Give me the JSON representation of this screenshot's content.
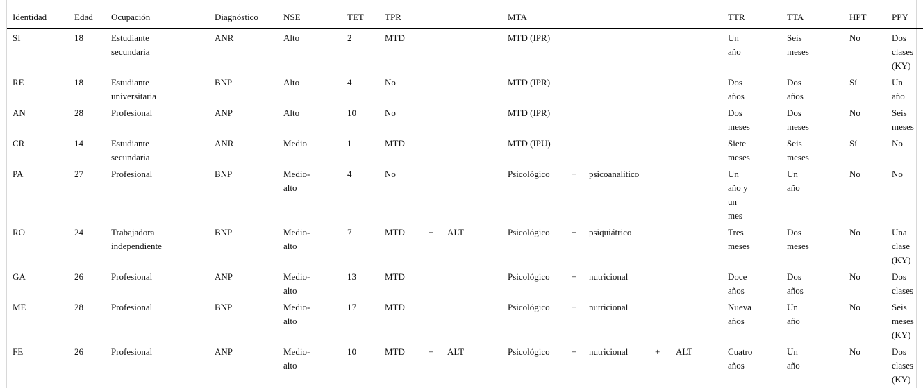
{
  "table": {
    "columns": [
      {
        "key": "identidad",
        "label": "Identidad"
      },
      {
        "key": "edad",
        "label": "Edad"
      },
      {
        "key": "ocupacion",
        "label": "Ocupación"
      },
      {
        "key": "diagnostico",
        "label": "Diagnóstico"
      },
      {
        "key": "nse",
        "label": "NSE"
      },
      {
        "key": "tet",
        "label": "TET"
      },
      {
        "key": "tpr",
        "label": "TPR"
      },
      {
        "key": "mta",
        "label": "MTA"
      },
      {
        "key": "ttr",
        "label": "TTR"
      },
      {
        "key": "tta",
        "label": "TTA"
      },
      {
        "key": "hpt",
        "label": "HPT"
      },
      {
        "key": "ppy",
        "label": "PPY"
      }
    ],
    "rows": [
      {
        "identidad": "SI",
        "edad": "18",
        "ocupacion": "Estudiante\nsecundaria",
        "diagnostico": "ANR",
        "nse": "Alto",
        "tet": "2",
        "tpr": "MTD",
        "mta": "MTD (IPR)",
        "ttr": "Un\naño",
        "tta": "Seis\nmeses",
        "hpt": "No",
        "ppy": "Dos\nclases\n(KY)"
      },
      {
        "identidad": "RE",
        "edad": "18",
        "ocupacion": "Estudiante\nuniversitaria",
        "diagnostico": "BNP",
        "nse": "Alto",
        "tet": "4",
        "tpr": "No",
        "mta": "MTD (IPR)",
        "ttr": "Dos\naños",
        "tta": "Dos\naños",
        "hpt": "Sí",
        "ppy": "Un\naño"
      },
      {
        "identidad": "AN",
        "edad": "28",
        "ocupacion": "Profesional",
        "diagnostico": "ANP",
        "nse": "Alto",
        "tet": "10",
        "tpr": "No",
        "mta": "MTD (IPR)",
        "ttr": "Dos\nmeses",
        "tta": "Dos\nmeses",
        "hpt": "No",
        "ppy": "Seis\nmeses"
      },
      {
        "identidad": "CR",
        "edad": "14",
        "ocupacion": "Estudiante\nsecundaria",
        "diagnostico": "ANR",
        "nse": "Medio",
        "tet": "1",
        "tpr": "MTD",
        "mta": "MTD (IPU)",
        "ttr": "Siete\nmeses",
        "tta": "Seis\nmeses",
        "hpt": "Sí",
        "ppy": "No"
      },
      {
        "identidad": "PA",
        "edad": "27",
        "ocupacion": "Profesional",
        "diagnostico": "BNP",
        "nse": "Medio-\nalto",
        "tet": "4",
        "tpr": "No",
        "mta": [
          "Psicológico",
          "+",
          "psicoanalítico"
        ],
        "ttr": "Un\naño y\nun\nmes",
        "tta": "Un\naño",
        "hpt": "No",
        "ppy": "No"
      },
      {
        "identidad": "RO",
        "edad": "24",
        "ocupacion": "Trabajadora\nindependiente",
        "diagnostico": "BNP",
        "nse": "Medio-\nalto",
        "tet": "7",
        "tpr": [
          "MTD",
          "+",
          "ALT"
        ],
        "mta": [
          "Psicológico",
          "+",
          "psiquiátrico"
        ],
        "ttr": "Tres\nmeses",
        "tta": "Dos\nmeses",
        "hpt": "No",
        "ppy": "Una\nclase\n(KY)"
      },
      {
        "identidad": "GA",
        "edad": "26",
        "ocupacion": "Profesional",
        "diagnostico": "ANP",
        "nse": "Medio-\nalto",
        "tet": "13",
        "tpr": "MTD",
        "mta": [
          "Psicológico",
          "+",
          "nutricional"
        ],
        "ttr": "Doce\naños",
        "tta": "Dos\naños",
        "hpt": "No",
        "ppy": "Dos\nclases"
      },
      {
        "identidad": "ME",
        "edad": "28",
        "ocupacion": "Profesional",
        "diagnostico": "BNP",
        "nse": "Medio-\nalto",
        "tet": "17",
        "tpr": "MTD",
        "mta": [
          "Psicológico",
          "+",
          "nutricional"
        ],
        "ttr": "Nueva\naños",
        "tta": "Un\naño",
        "hpt": "No",
        "ppy": "Seis\nmeses\n(KY)"
      },
      {
        "identidad": "FE",
        "edad": "26",
        "ocupacion": "Profesional",
        "diagnostico": "ANP",
        "nse": "Medio-\nalto",
        "tet": "10",
        "tpr": [
          "MTD",
          "+",
          "ALT"
        ],
        "mta": [
          "Psicológico",
          "+",
          "nutricional",
          "+",
          "ALT"
        ],
        "ttr": "Cuatro\naños",
        "tta": "Un\naño",
        "hpt": "No",
        "ppy": "Dos\nclases\n(KY)"
      }
    ]
  }
}
